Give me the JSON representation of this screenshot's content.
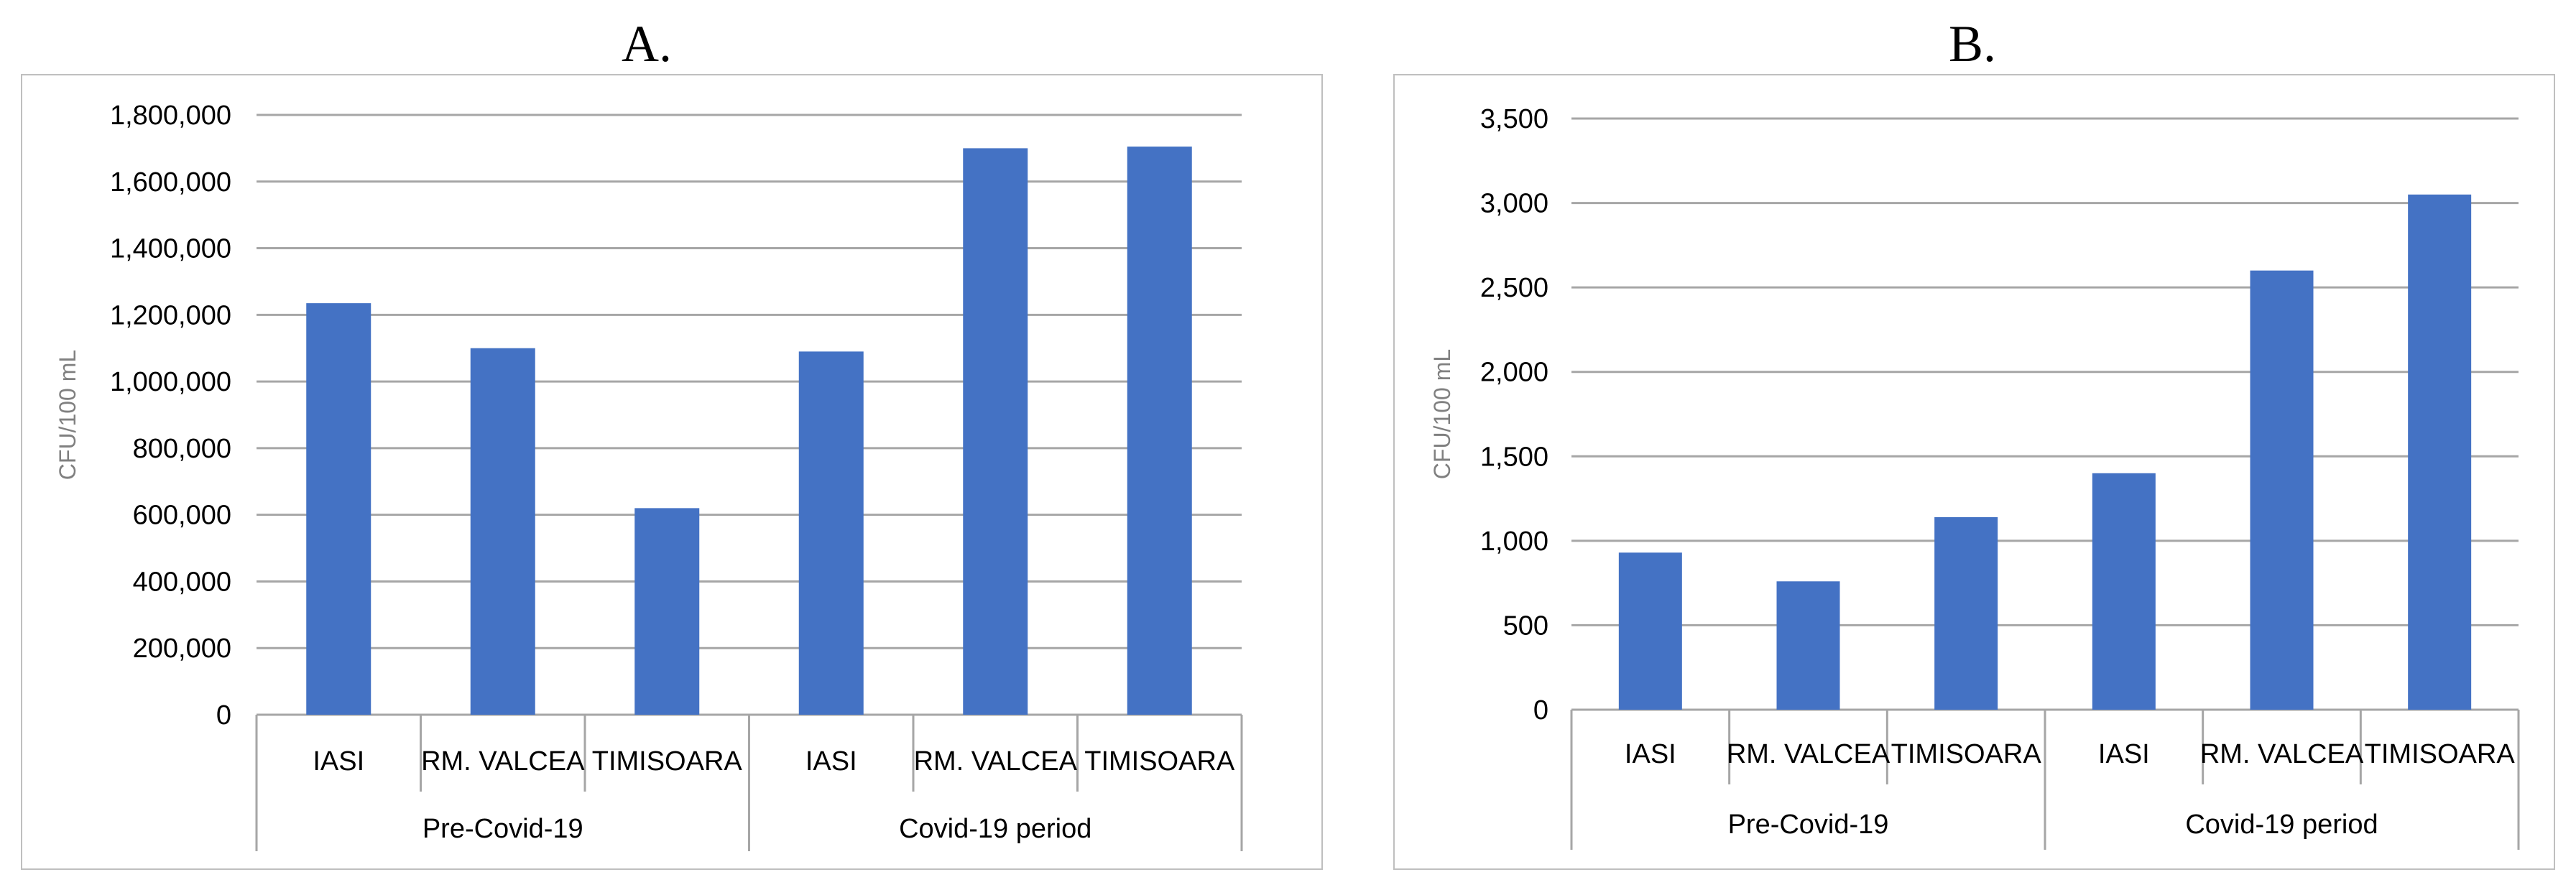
{
  "chart_data": [
    {
      "type": "bar",
      "panel_label": "A.",
      "ylabel": "CFU/100 mL",
      "ylim": [
        0,
        1800000
      ],
      "ytick_step": 200000,
      "ytick_labels": [
        "0",
        "200,000",
        "400,000",
        "600,000",
        "800,000",
        "1,000,000",
        "1,200,000",
        "1,400,000",
        "1,600,000",
        "1,800,000"
      ],
      "grid": true,
      "legend": "none",
      "color": "#4472C4",
      "categories": [
        "IASI",
        "RM. VALCEA",
        "TIMISOARA",
        "IASI",
        "RM. VALCEA",
        "TIMISOARA"
      ],
      "groups": [
        {
          "label": "Pre-Covid-19",
          "count": 3
        },
        {
          "label": "Covid-19 period",
          "count": 3
        }
      ],
      "values": [
        1235000,
        1100000,
        620000,
        1090000,
        1700000,
        1705000
      ]
    },
    {
      "type": "bar",
      "panel_label": "B.",
      "ylabel": "CFU/100 mL",
      "ylim": [
        0,
        3500
      ],
      "ytick_step": 500,
      "ytick_labels": [
        "0",
        "500",
        "1,000",
        "1,500",
        "2,000",
        "2,500",
        "3,000",
        "3,500"
      ],
      "grid": true,
      "legend": "none",
      "color": "#4472C4",
      "categories": [
        "IASI",
        "RM. VALCEA",
        "TIMISOARA",
        "IASI",
        "RM. VALCEA",
        "TIMISOARA"
      ],
      "groups": [
        {
          "label": "Pre-Covid-19",
          "count": 3
        },
        {
          "label": "Covid-19 period",
          "count": 3
        }
      ],
      "values": [
        930,
        760,
        1140,
        1400,
        2600,
        3050
      ]
    }
  ]
}
